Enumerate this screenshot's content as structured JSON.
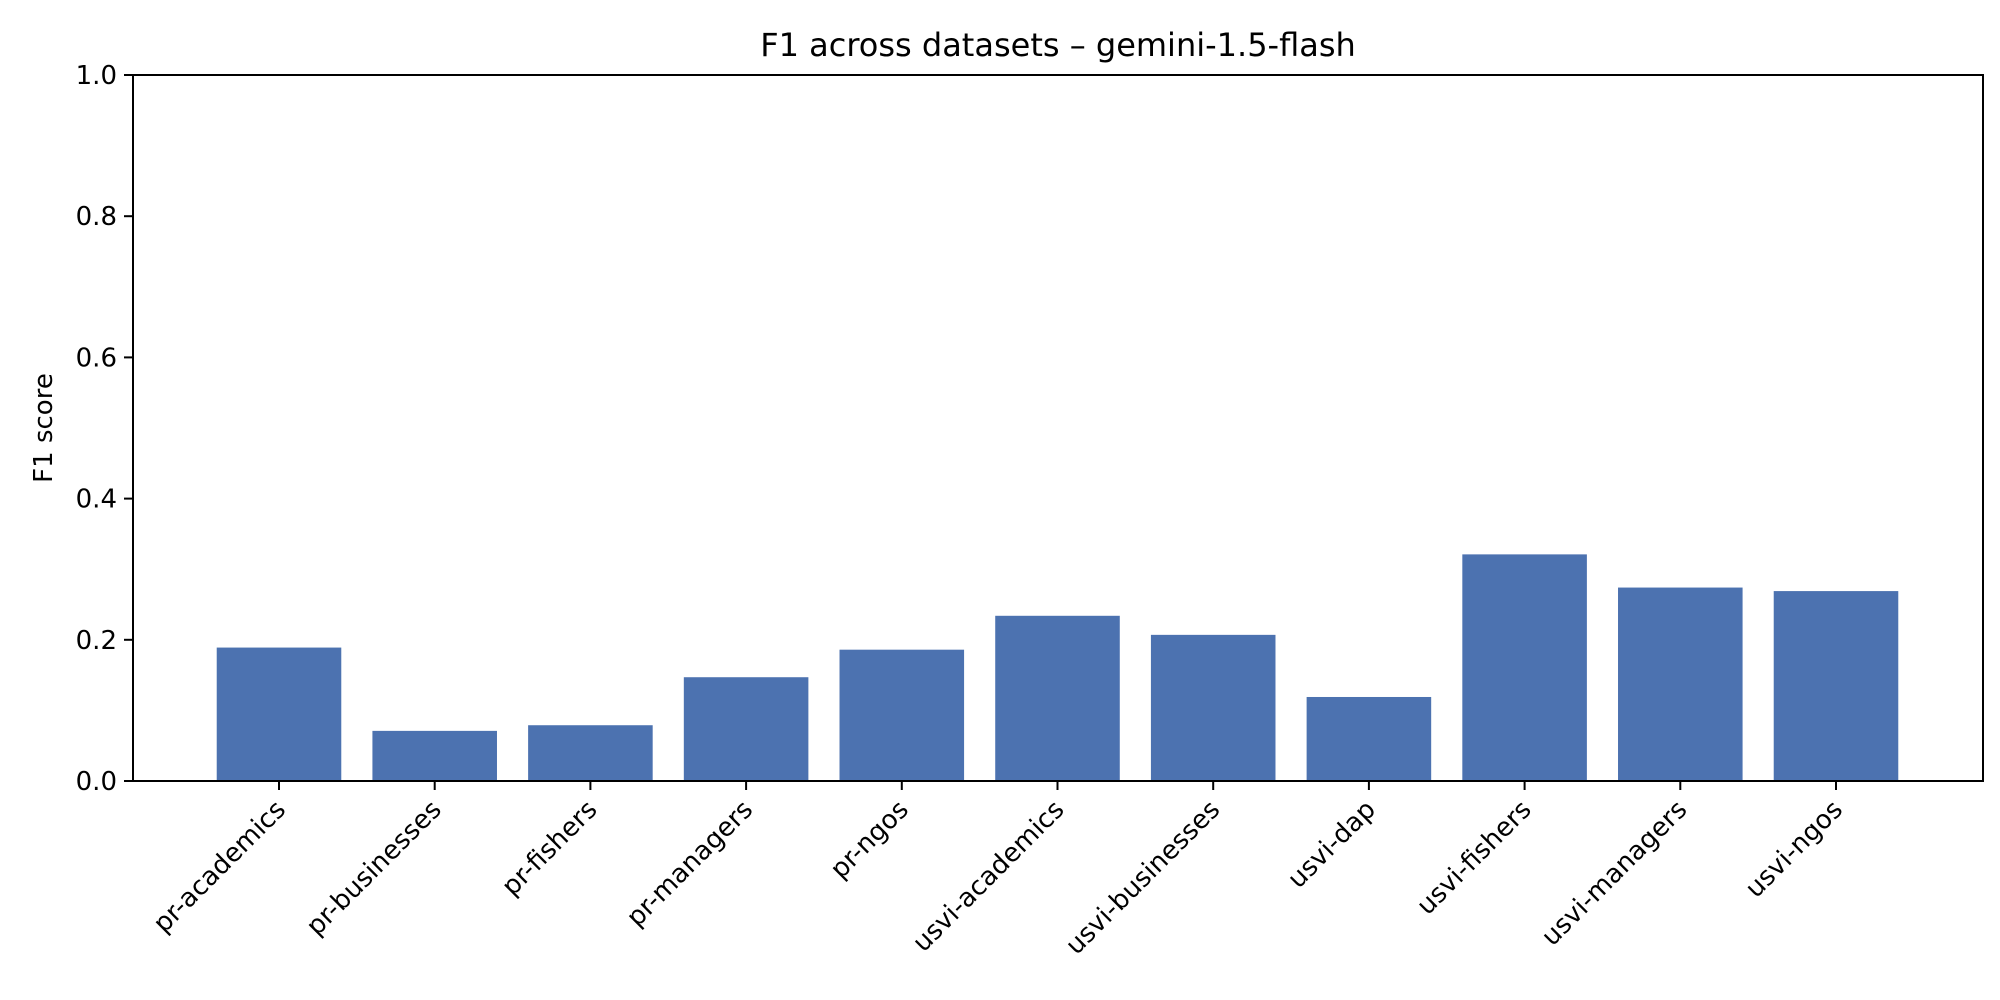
{
  "chart_data": {
    "type": "bar",
    "title": "F1 across datasets – gemini-1.5-flash",
    "xlabel": "",
    "ylabel": "F1 score",
    "ylim": [
      0,
      1.0
    ],
    "yticks": [
      "0.0",
      "0.2",
      "0.4",
      "0.6",
      "0.8",
      "1.0"
    ],
    "categories": [
      "pr-academics",
      "pr-businesses",
      "pr-fishers",
      "pr-managers",
      "pr-ngos",
      "usvi-academics",
      "usvi-businesses",
      "usvi-dap",
      "usvi-fishers",
      "usvi-managers",
      "usvi-ngos"
    ],
    "values": [
      0.189,
      0.071,
      0.079,
      0.147,
      0.186,
      0.234,
      0.207,
      0.119,
      0.321,
      0.274,
      0.269
    ],
    "bar_color": "#4c72b0",
    "grid": false,
    "legend": "none"
  }
}
